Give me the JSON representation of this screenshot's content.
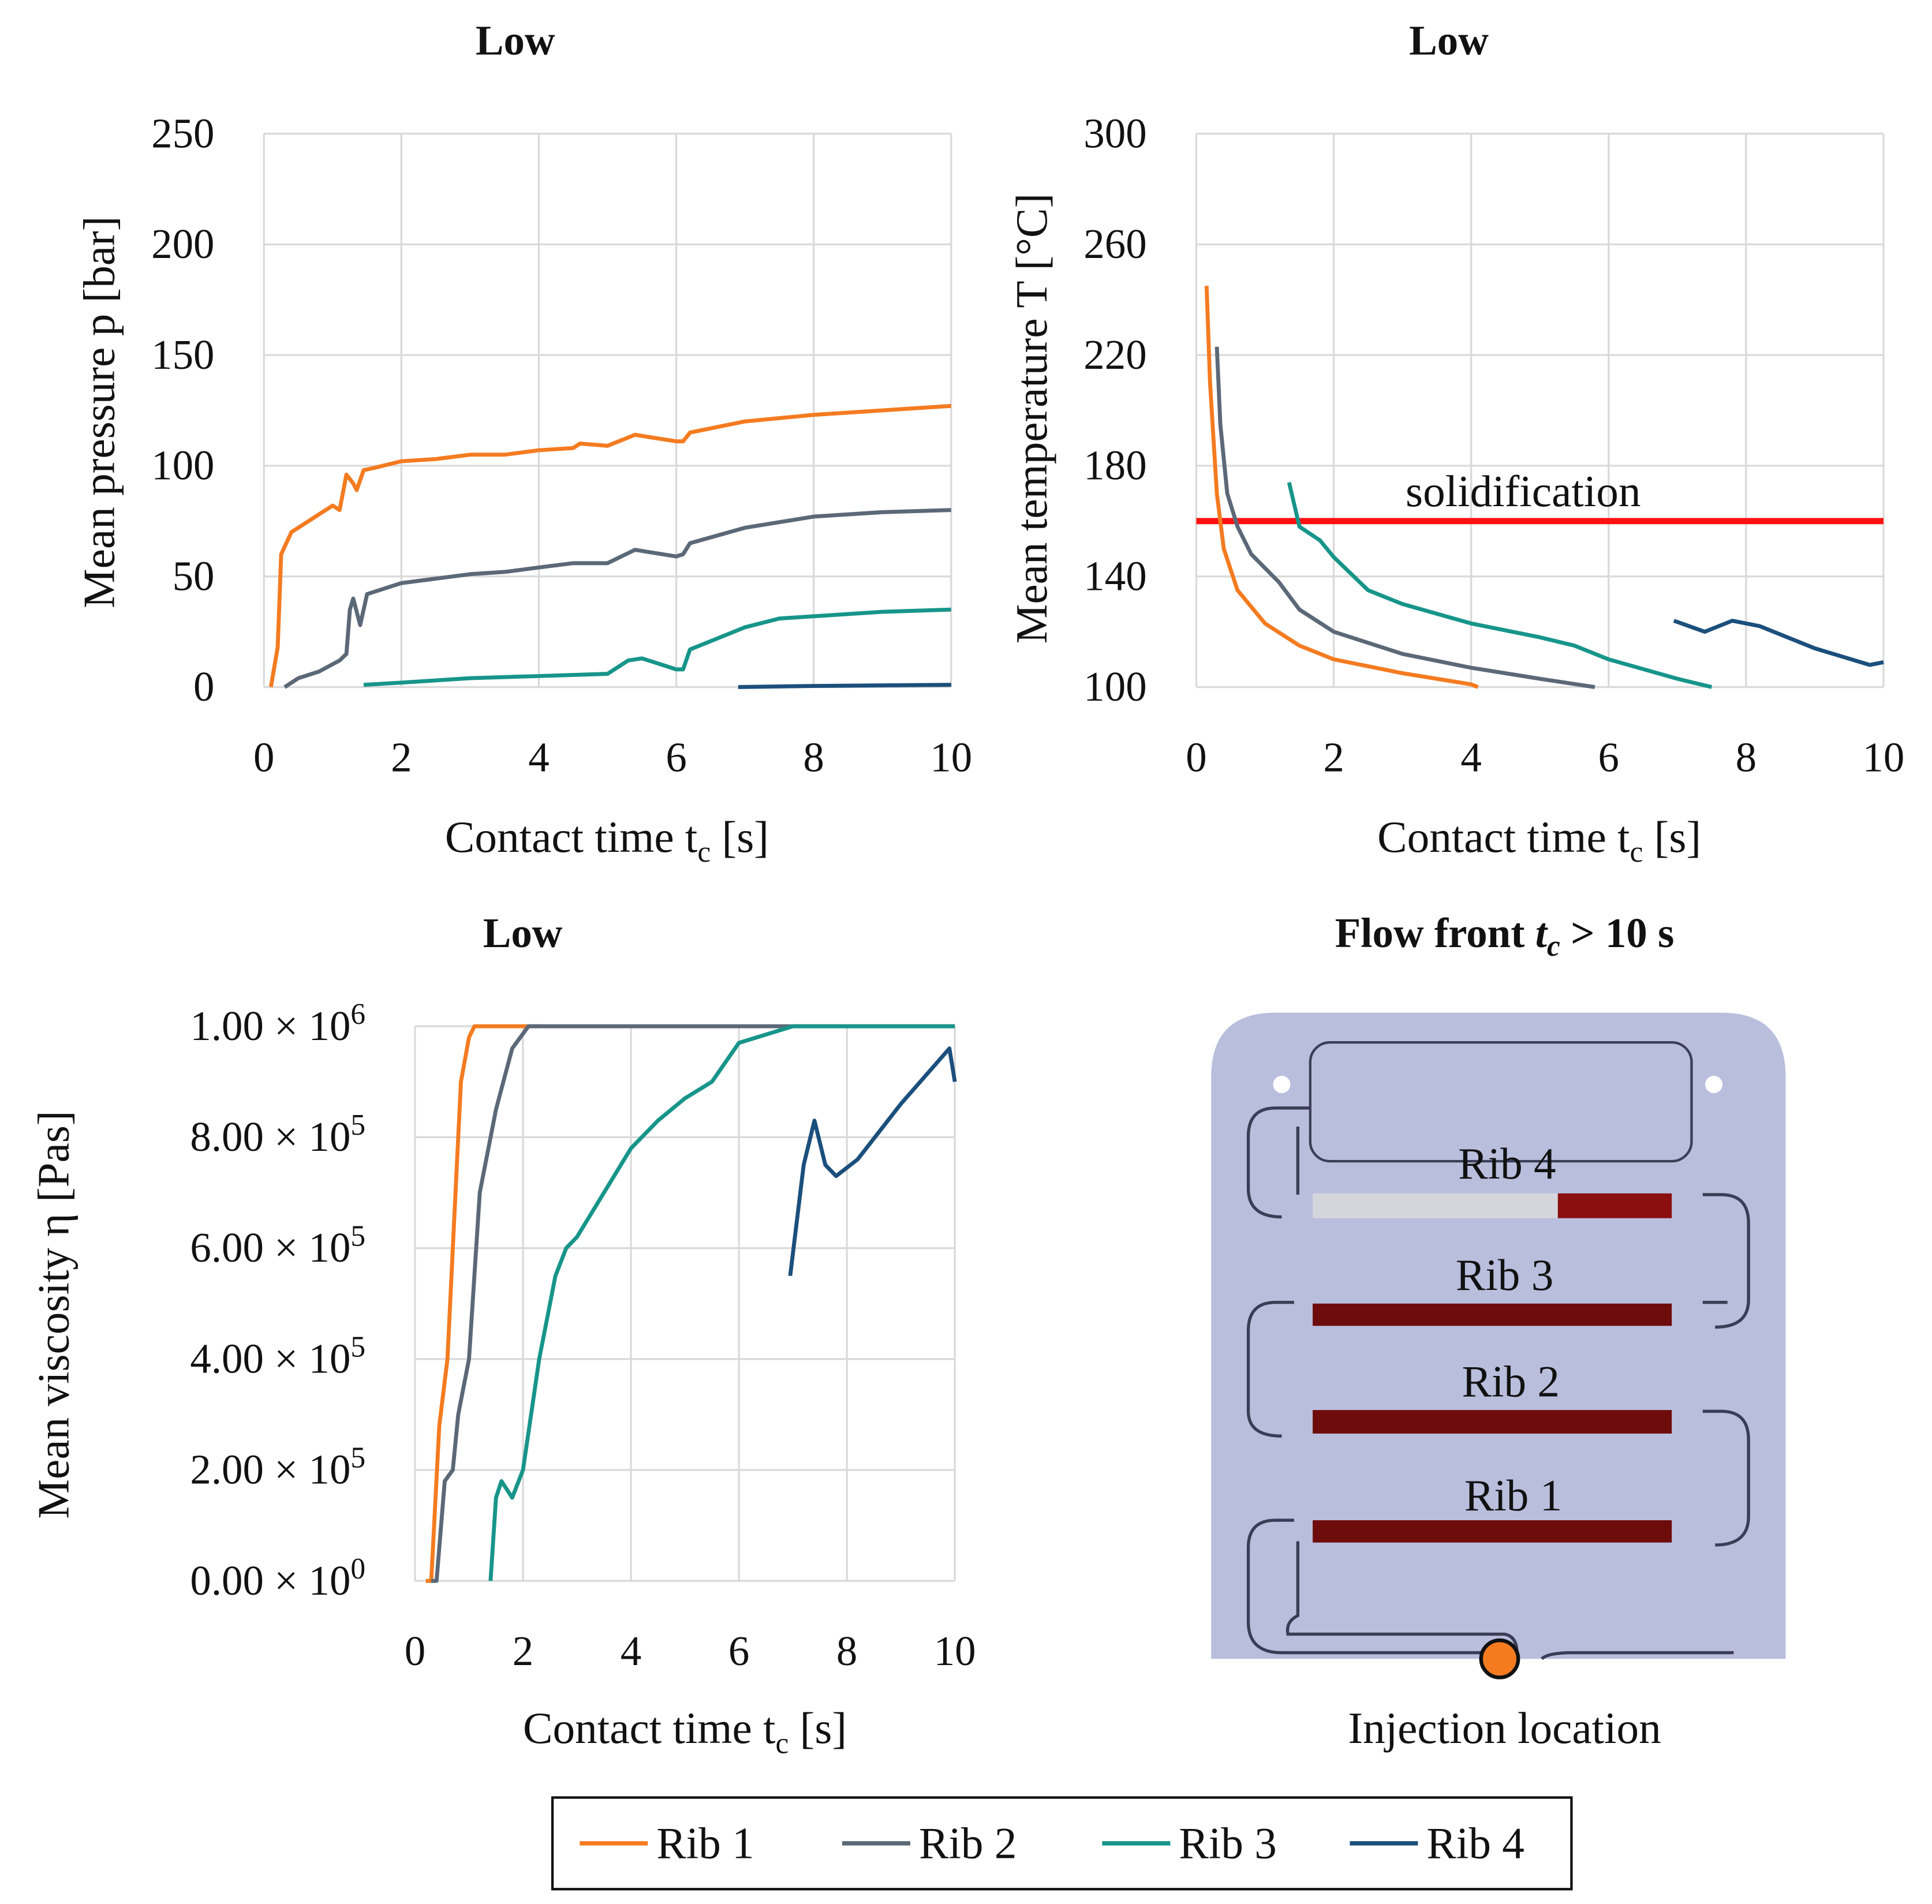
{
  "colors": {
    "rib1": "#F47B20",
    "rib2": "#5B6877",
    "rib3": "#17958A",
    "rib4": "#1B4F7C",
    "solid": "#FF1010"
  },
  "chart_data": [
    {
      "type": "line",
      "id": "pressure",
      "title": "Low",
      "xlabel": "Contact time t",
      "xlabel_sub": "c",
      "xlabel_unit": " [s]",
      "ylabel": "Mean pressure p [bar]",
      "xlim": [
        0,
        10
      ],
      "ylim": [
        0,
        250
      ],
      "xticks": [
        "0",
        "2",
        "4",
        "6",
        "8",
        "10"
      ],
      "yticks": [
        "0",
        "50",
        "100",
        "150",
        "200",
        "250"
      ],
      "grid": true,
      "series": [
        {
          "name": "Rib 1",
          "points": [
            [
              0.1,
              0
            ],
            [
              0.2,
              18
            ],
            [
              0.25,
              60
            ],
            [
              0.4,
              70
            ],
            [
              0.6,
              74
            ],
            [
              0.8,
              78
            ],
            [
              1.0,
              82
            ],
            [
              1.1,
              80
            ],
            [
              1.2,
              96
            ],
            [
              1.3,
              92
            ],
            [
              1.35,
              89
            ],
            [
              1.45,
              98
            ],
            [
              1.6,
              99
            ],
            [
              2,
              102
            ],
            [
              2.5,
              103
            ],
            [
              3,
              105
            ],
            [
              3.5,
              105
            ],
            [
              4,
              107
            ],
            [
              4.5,
              108
            ],
            [
              4.6,
              110
            ],
            [
              5,
              109
            ],
            [
              5.4,
              114
            ],
            [
              5.6,
              113
            ],
            [
              6,
              111
            ],
            [
              6.1,
              111
            ],
            [
              6.2,
              115
            ],
            [
              7,
              120
            ],
            [
              8,
              123
            ],
            [
              9,
              125
            ],
            [
              10,
              127
            ]
          ]
        },
        {
          "name": "Rib 2",
          "points": [
            [
              0.3,
              0
            ],
            [
              0.5,
              4
            ],
            [
              0.8,
              7
            ],
            [
              1.1,
              12
            ],
            [
              1.2,
              15
            ],
            [
              1.25,
              35
            ],
            [
              1.3,
              40
            ],
            [
              1.4,
              28
            ],
            [
              1.5,
              42
            ],
            [
              2,
              47
            ],
            [
              2.5,
              49
            ],
            [
              3,
              51
            ],
            [
              3.5,
              52
            ],
            [
              4,
              54
            ],
            [
              4.5,
              56
            ],
            [
              5,
              56
            ],
            [
              5.4,
              62
            ],
            [
              5.6,
              61
            ],
            [
              6,
              59
            ],
            [
              6.1,
              60
            ],
            [
              6.2,
              65
            ],
            [
              7,
              72
            ],
            [
              8,
              77
            ],
            [
              9,
              79
            ],
            [
              10,
              80
            ]
          ]
        },
        {
          "name": "Rib 3",
          "points": [
            [
              1.45,
              1
            ],
            [
              2,
              2
            ],
            [
              2.5,
              3
            ],
            [
              3,
              4
            ],
            [
              4,
              5
            ],
            [
              5,
              6
            ],
            [
              5.3,
              12
            ],
            [
              5.5,
              13
            ],
            [
              6,
              8
            ],
            [
              6.1,
              8
            ],
            [
              6.2,
              17
            ],
            [
              7,
              27
            ],
            [
              7.5,
              31
            ],
            [
              8,
              32
            ],
            [
              9,
              34
            ],
            [
              10,
              35
            ]
          ]
        },
        {
          "name": "Rib 4",
          "points": [
            [
              6.9,
              0
            ],
            [
              8,
              0.5
            ],
            [
              10,
              1
            ]
          ]
        }
      ]
    },
    {
      "type": "line",
      "id": "temperature",
      "title": "Low",
      "xlabel": "Contact time t",
      "xlabel_sub": "c",
      "xlabel_unit": " [s]",
      "ylabel": "Mean temperature T [°C]",
      "xlim": [
        0,
        10
      ],
      "ylim": [
        100,
        300
      ],
      "xticks": [
        "0",
        "2",
        "4",
        "6",
        "8",
        "10"
      ],
      "yticks": [
        "100",
        "140",
        "180",
        "220",
        "260",
        "300"
      ],
      "grid": true,
      "annotation": {
        "label": "solidification",
        "value": 160
      },
      "series": [
        {
          "name": "Rib 1",
          "points": [
            [
              0.15,
              245
            ],
            [
              0.2,
              210
            ],
            [
              0.3,
              170
            ],
            [
              0.4,
              150
            ],
            [
              0.6,
              135
            ],
            [
              1,
              123
            ],
            [
              1.5,
              115
            ],
            [
              2,
              110
            ],
            [
              3,
              105
            ],
            [
              4,
              101
            ],
            [
              4.1,
              100
            ]
          ]
        },
        {
          "name": "Rib 2",
          "points": [
            [
              0.3,
              223
            ],
            [
              0.35,
              195
            ],
            [
              0.45,
              170
            ],
            [
              0.6,
              158
            ],
            [
              0.8,
              148
            ],
            [
              1,
              143
            ],
            [
              1.2,
              138
            ],
            [
              1.5,
              128
            ],
            [
              2,
              120
            ],
            [
              3,
              112
            ],
            [
              4,
              107
            ],
            [
              5,
              103
            ],
            [
              5.8,
              100
            ]
          ]
        },
        {
          "name": "Rib 3",
          "points": [
            [
              1.35,
              174
            ],
            [
              1.5,
              158
            ],
            [
              1.8,
              153
            ],
            [
              2,
              147
            ],
            [
              2.5,
              135
            ],
            [
              3,
              130
            ],
            [
              4,
              123
            ],
            [
              5,
              118
            ],
            [
              5.5,
              115
            ],
            [
              6,
              110
            ],
            [
              7,
              103
            ],
            [
              7.5,
              100
            ]
          ]
        },
        {
          "name": "Rib 4",
          "points": [
            [
              6.95,
              124
            ],
            [
              7.4,
              120
            ],
            [
              7.8,
              124
            ],
            [
              8.2,
              122
            ],
            [
              9,
              114
            ],
            [
              9.8,
              108
            ],
            [
              10,
              109
            ]
          ]
        }
      ]
    },
    {
      "type": "line",
      "id": "viscosity",
      "title": "Low",
      "xlabel": "Contact time t",
      "xlabel_sub": "c",
      "xlabel_unit": " [s]",
      "ylabel": "Mean viscosity η [Pas]",
      "xlim": [
        0,
        10
      ],
      "ylim": [
        0,
        1000000
      ],
      "y_unit_note": "values in units of 1e5 Pas",
      "xticks": [
        "0",
        "2",
        "4",
        "6",
        "8",
        "10"
      ],
      "yticks": [
        {
          "mant": "0.00 × 10",
          "exp": "0"
        },
        {
          "mant": "2.00 × 10",
          "exp": "5"
        },
        {
          "mant": "4.00 × 10",
          "exp": "5"
        },
        {
          "mant": "6.00 × 10",
          "exp": "5"
        },
        {
          "mant": "8.00 × 10",
          "exp": "5"
        },
        {
          "mant": "1.00 × 10",
          "exp": "6"
        }
      ],
      "grid": true,
      "series": [
        {
          "name": "Rib 1",
          "points": [
            [
              0.2,
              0
            ],
            [
              0.3,
              0
            ],
            [
              0.45,
              2.8
            ],
            [
              0.6,
              4
            ],
            [
              0.75,
              7
            ],
            [
              0.85,
              9
            ],
            [
              1,
              9.8
            ],
            [
              1.1,
              10
            ],
            [
              2.3,
              10
            ]
          ]
        },
        {
          "name": "Rib 2",
          "points": [
            [
              0.3,
              0
            ],
            [
              0.4,
              0
            ],
            [
              0.55,
              1.8
            ],
            [
              0.7,
              2
            ],
            [
              0.8,
              3
            ],
            [
              1,
              4
            ],
            [
              1.2,
              7
            ],
            [
              1.5,
              8.5
            ],
            [
              1.8,
              9.6
            ],
            [
              2.1,
              10
            ],
            [
              10,
              10
            ]
          ]
        },
        {
          "name": "Rib 3",
          "points": [
            [
              1.4,
              0
            ],
            [
              1.5,
              1.5
            ],
            [
              1.6,
              1.8
            ],
            [
              1.8,
              1.5
            ],
            [
              2,
              2
            ],
            [
              2.3,
              4
            ],
            [
              2.6,
              5.5
            ],
            [
              2.8,
              6
            ],
            [
              3,
              6.2
            ],
            [
              3.5,
              7
            ],
            [
              4,
              7.8
            ],
            [
              4.5,
              8.3
            ],
            [
              5,
              8.7
            ],
            [
              5.5,
              9.0
            ],
            [
              6,
              9.7
            ],
            [
              7,
              10
            ],
            [
              10,
              10
            ]
          ]
        },
        {
          "name": "Rib 4",
          "points": [
            [
              6.95,
              5.5
            ],
            [
              7.2,
              7.5
            ],
            [
              7.4,
              8.3
            ],
            [
              7.6,
              7.5
            ],
            [
              7.8,
              7.3
            ],
            [
              8.2,
              7.6
            ],
            [
              9,
              8.6
            ],
            [
              9.9,
              9.6
            ],
            [
              10,
              9.0
            ]
          ]
        }
      ]
    }
  ],
  "diagram": {
    "title": "Flow front ",
    "title_var": "t",
    "title_sub": "c",
    "title_rest": " > 10 s",
    "rib_labels": [
      "Rib 4",
      "Rib 3",
      "Rib 2",
      "Rib 1"
    ],
    "caption": "Injection location"
  },
  "legend": [
    "Rib 1",
    "Rib 2",
    "Rib 3",
    "Rib 4"
  ]
}
